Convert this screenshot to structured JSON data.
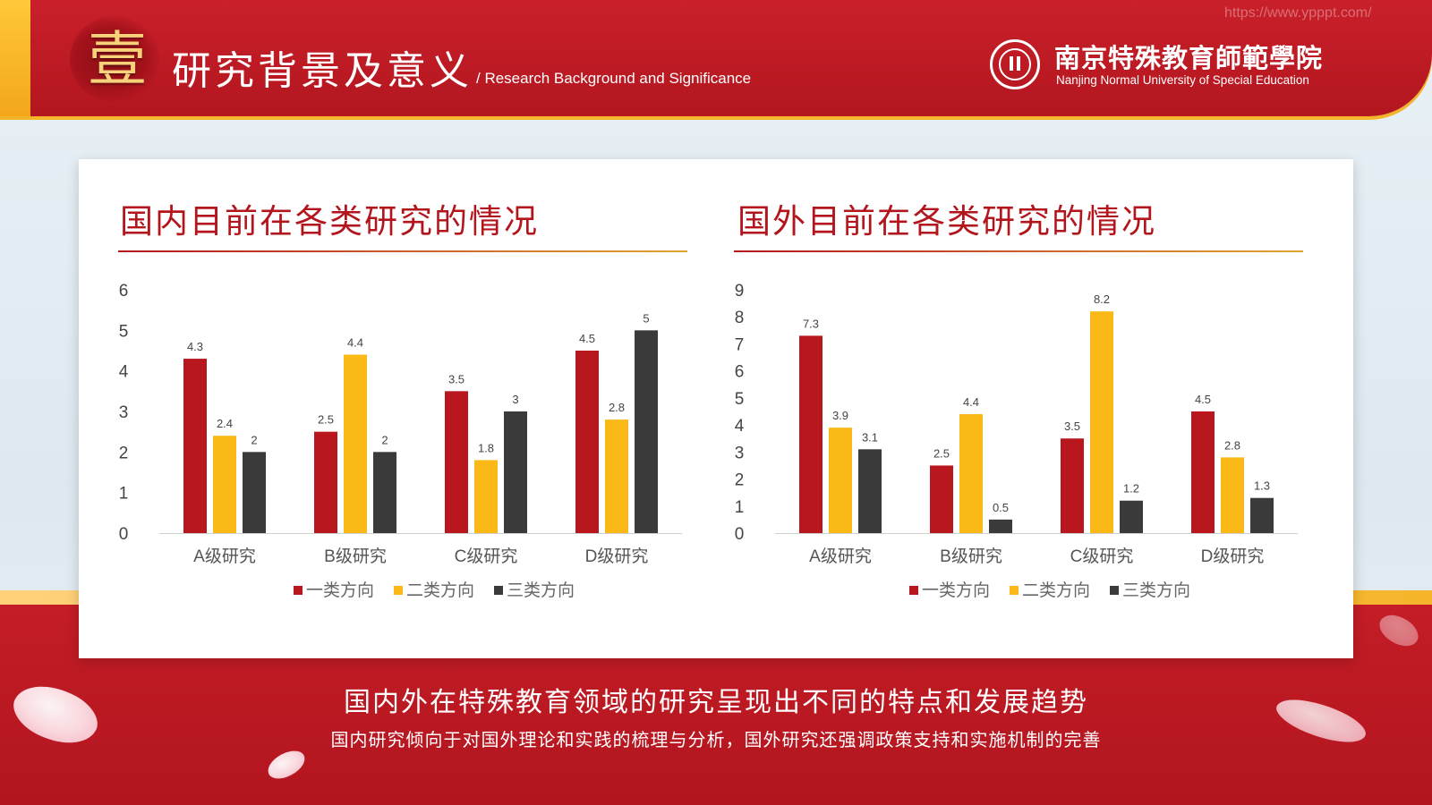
{
  "header": {
    "seal_char": "壹",
    "title_cn": "研究背景及意义",
    "title_en": "/ Research Background and Significance",
    "school_cn": "南京特殊教育師範學院",
    "school_en": "Nanjing Normal University of Special Education",
    "watermark": "https://www.ypppt.com/"
  },
  "colors": {
    "series1": "#b8171e",
    "series2": "#fbb918",
    "series3": "#3a3a3a",
    "brand_red": "#c41d27",
    "accent_gold": "#f6b52b"
  },
  "chart_data": [
    {
      "type": "bar",
      "title": "国内目前在各类研究的情况",
      "categories": [
        "A级研究",
        "B级研究",
        "C级研究",
        "D级研究"
      ],
      "ylim": [
        0,
        6
      ],
      "yticks": [
        0,
        1,
        2,
        3,
        4,
        5,
        6
      ],
      "grid": false,
      "legend": "bottom",
      "series": [
        {
          "name": "一类方向",
          "values": [
            4.3,
            2.5,
            3.5,
            4.5
          ]
        },
        {
          "name": "二类方向",
          "values": [
            2.4,
            4.4,
            1.8,
            2.8
          ]
        },
        {
          "name": "三类方向",
          "values": [
            2,
            2,
            3,
            5
          ]
        }
      ]
    },
    {
      "type": "bar",
      "title": "国外目前在各类研究的情况",
      "categories": [
        "A级研究",
        "B级研究",
        "C级研究",
        "D级研究"
      ],
      "ylim": [
        0,
        9
      ],
      "yticks": [
        0,
        1,
        2,
        3,
        4,
        5,
        6,
        7,
        8,
        9
      ],
      "grid": false,
      "legend": "bottom",
      "series": [
        {
          "name": "一类方向",
          "values": [
            7.3,
            2.5,
            3.5,
            4.5
          ]
        },
        {
          "name": "二类方向",
          "values": [
            3.9,
            4.4,
            8.2,
            2.8
          ]
        },
        {
          "name": "三类方向",
          "values": [
            3.1,
            0.5,
            1.2,
            1.3
          ]
        }
      ]
    }
  ],
  "summary": {
    "main": "国内外在特殊教育领域的研究呈现出不同的特点和发展趋势",
    "sub": "国内研究倾向于对国外理论和实践的梳理与分析，国外研究还强调政策支持和实施机制的完善"
  }
}
